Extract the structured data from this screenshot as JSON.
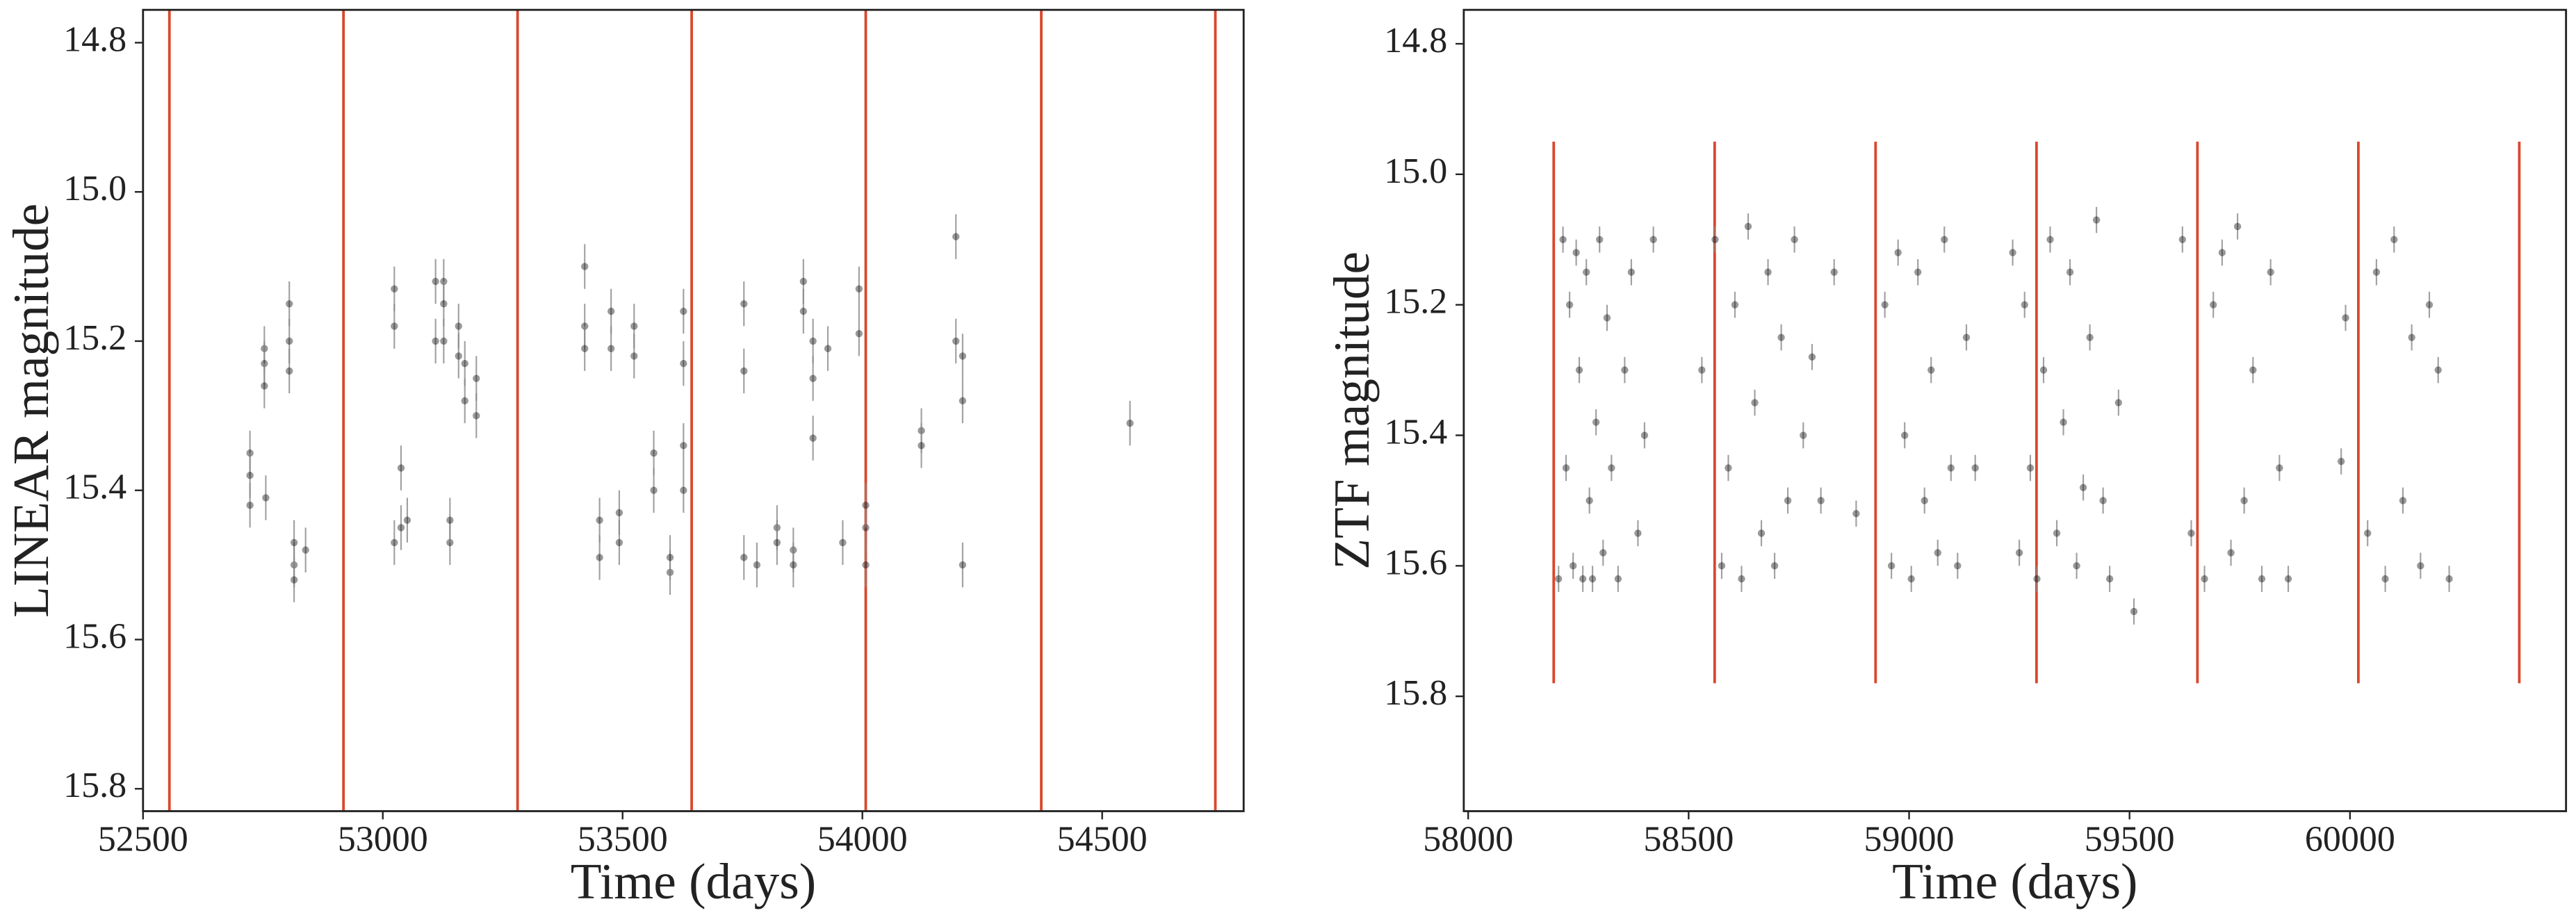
{
  "chart_data": [
    {
      "type": "scatter",
      "xlabel": "Time (days)",
      "ylabel": "LINEAR magnitude",
      "xlim": [
        52500,
        54795
      ],
      "ylim": [
        14.756,
        15.83
      ],
      "invert_y": true,
      "xticks": [
        52500,
        53000,
        53500,
        54000,
        54500
      ],
      "yticks": [
        14.8,
        {
          "value": 15,
          "label": "15.0"
        },
        15.2,
        15.4,
        15.6,
        15.8
      ],
      "series": [
        {
          "color": "#000000",
          "yerr": 0.03,
          "x": [
            52723,
            52723,
            52723,
            52753,
            52753,
            52753,
            52756,
            52805,
            52805,
            52805,
            52815,
            52815,
            52815,
            52839,
            53024,
            53024,
            53024,
            53038,
            53038,
            53051,
            53110,
            53110,
            53127,
            53127,
            53127,
            53140,
            53140,
            53158,
            53158,
            53171,
            53171,
            53195,
            53195,
            53421,
            53421,
            53421,
            53452,
            53452,
            53476,
            53476,
            53493,
            53493,
            53524,
            53524,
            53565,
            53565,
            53599,
            53599,
            53627,
            53627,
            53627,
            53627,
            53753,
            53753,
            53753,
            53780,
            53822,
            53822,
            53856,
            53856,
            53877,
            53877,
            53897,
            53897,
            53897,
            53928,
            53959,
            53993,
            53993,
            54007,
            54007,
            54007,
            54123,
            54123,
            54195,
            54195,
            54209,
            54209,
            54209,
            54558
          ],
          "values": [
            15.35,
            15.38,
            15.42,
            15.21,
            15.23,
            15.26,
            15.41,
            15.15,
            15.2,
            15.24,
            15.5,
            15.52,
            15.47,
            15.48,
            15.13,
            15.18,
            15.47,
            15.45,
            15.37,
            15.44,
            15.12,
            15.2,
            15.12,
            15.15,
            15.2,
            15.47,
            15.44,
            15.18,
            15.22,
            15.23,
            15.28,
            15.25,
            15.3,
            15.1,
            15.18,
            15.21,
            15.44,
            15.49,
            15.16,
            15.21,
            15.43,
            15.47,
            15.18,
            15.22,
            15.35,
            15.4,
            15.51,
            15.49,
            15.16,
            15.23,
            15.34,
            15.4,
            15.15,
            15.24,
            15.49,
            15.5,
            15.45,
            15.47,
            15.48,
            15.5,
            15.12,
            15.16,
            15.2,
            15.25,
            15.33,
            15.21,
            15.47,
            15.13,
            15.19,
            15.45,
            15.5,
            15.42,
            15.32,
            15.34,
            15.06,
            15.2,
            15.5,
            15.22,
            15.28,
            15.31
          ]
        }
      ],
      "vlines": {
        "color": "#d9472b",
        "x": [
          52555,
          52918,
          53281,
          53644,
          54007,
          54373,
          54736
        ]
      }
    },
    {
      "type": "scatter",
      "xlabel": "Time (days)",
      "ylabel": "ZTF magnitude",
      "xlim": [
        57990,
        60490
      ],
      "ylim": [
        14.748,
        15.976
      ],
      "invert_y": true,
      "xticks": [
        58000,
        58500,
        59000,
        59500,
        60000
      ],
      "yticks": [
        14.8,
        {
          "value": 15,
          "label": "15.0"
        },
        15.2,
        15.4,
        15.6,
        15.8
      ],
      "series": [
        {
          "color": "#000000",
          "yerr": 0.02,
          "x": [
            58205,
            58215,
            58222,
            58230,
            58238,
            58245,
            58252,
            58260,
            58268,
            58275,
            58282,
            58290,
            58298,
            58306,
            58315,
            58325,
            58340,
            58355,
            58370,
            58385,
            58400,
            58420,
            58530,
            58560,
            58575,
            58590,
            58605,
            58620,
            58635,
            58650,
            58665,
            58680,
            58695,
            58710,
            58725,
            58740,
            58760,
            58780,
            58800,
            58830,
            58880,
            58945,
            58960,
            58975,
            58990,
            59005,
            59020,
            59035,
            59050,
            59065,
            59080,
            59095,
            59110,
            59130,
            59150,
            59235,
            59250,
            59262,
            59275,
            59290,
            59305,
            59320,
            59335,
            59350,
            59365,
            59380,
            59395,
            59410,
            59425,
            59440,
            59455,
            59475,
            59510,
            59620,
            59640,
            59670,
            59690,
            59710,
            59730,
            59745,
            59760,
            59780,
            59800,
            59820,
            59840,
            59860,
            59980,
            59990,
            60040,
            60060,
            60080,
            60100,
            60120,
            60140,
            60160,
            60180,
            60200,
            60225
          ],
          "values": [
            15.62,
            15.1,
            15.45,
            15.2,
            15.6,
            15.12,
            15.3,
            15.62,
            15.15,
            15.5,
            15.62,
            15.38,
            15.1,
            15.58,
            15.22,
            15.45,
            15.62,
            15.3,
            15.15,
            15.55,
            15.4,
            15.1,
            15.3,
            15.1,
            15.6,
            15.45,
            15.2,
            15.62,
            15.08,
            15.35,
            15.55,
            15.15,
            15.6,
            15.25,
            15.5,
            15.1,
            15.4,
            15.28,
            15.5,
            15.15,
            15.52,
            15.2,
            15.6,
            15.12,
            15.4,
            15.62,
            15.15,
            15.5,
            15.3,
            15.58,
            15.1,
            15.45,
            15.6,
            15.25,
            15.45,
            15.12,
            15.58,
            15.2,
            15.45,
            15.62,
            15.3,
            15.1,
            15.55,
            15.38,
            15.15,
            15.6,
            15.48,
            15.25,
            15.07,
            15.5,
            15.62,
            15.35,
            15.67,
            15.1,
            15.55,
            15.62,
            15.2,
            15.12,
            15.58,
            15.08,
            15.5,
            15.3,
            15.62,
            15.15,
            15.45,
            15.62,
            15.44,
            15.22,
            15.55,
            15.15,
            15.62,
            15.1,
            15.5,
            15.25,
            15.6,
            15.2,
            15.3,
            15.62
          ]
        }
      ],
      "vlines": {
        "color": "#d9472b",
        "x": [
          58194,
          58559,
          58924,
          59289,
          59654,
          60019,
          60384
        ],
        "ymin": 14.95,
        "ymax": 15.78
      }
    }
  ]
}
